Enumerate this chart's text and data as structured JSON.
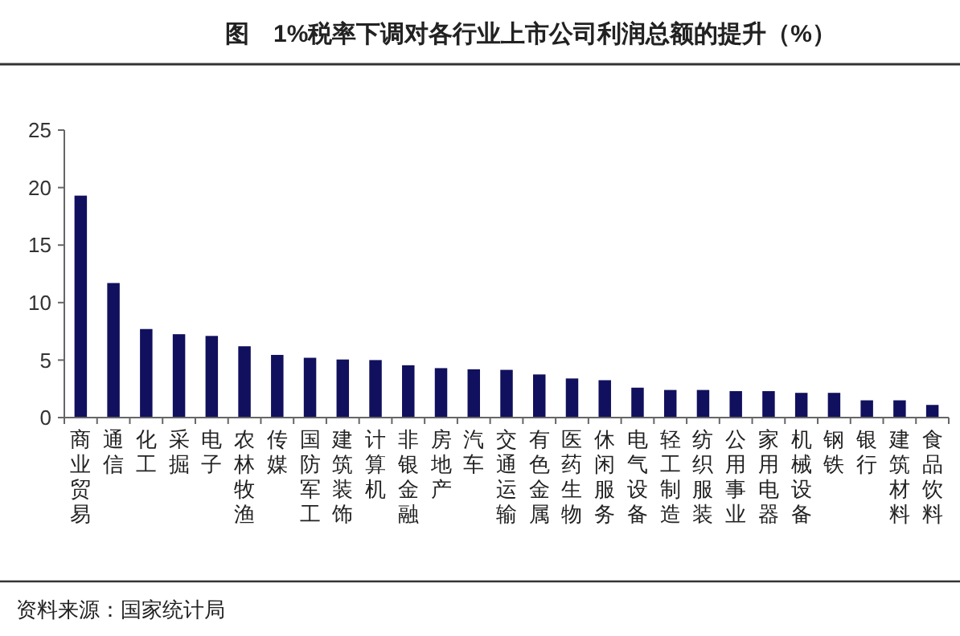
{
  "chart_data": {
    "type": "bar",
    "title": "图　1%税率下调对各行业上市公司利润总额的提升（%）",
    "categories": [
      "商业贸易",
      "通信",
      "化工",
      "采掘",
      "电子",
      "农林牧渔",
      "传媒",
      "国防军工",
      "建筑装饰",
      "计算机",
      "非银金融",
      "房地产",
      "汽车",
      "交通运输",
      "有色金属",
      "医药生物",
      "休闲服务",
      "电气设备",
      "轻工制造",
      "纺织服装",
      "公用事业",
      "家用电器",
      "机械设备",
      "钢铁",
      "银行",
      "建筑材料",
      "食品饮料"
    ],
    "values": [
      19.3,
      11.7,
      7.7,
      7.25,
      7.1,
      6.2,
      5.45,
      5.2,
      5.05,
      5.0,
      4.55,
      4.3,
      4.2,
      4.15,
      3.75,
      3.4,
      3.25,
      2.6,
      2.4,
      2.4,
      2.3,
      2.3,
      2.15,
      2.15,
      1.5,
      1.5,
      1.1
    ],
    "color": "#10105e",
    "ylim": [
      0,
      25
    ],
    "yticks": [
      0,
      5,
      10,
      15,
      20,
      25
    ],
    "annotations": [
      "资料来源：国家统计局"
    ]
  }
}
